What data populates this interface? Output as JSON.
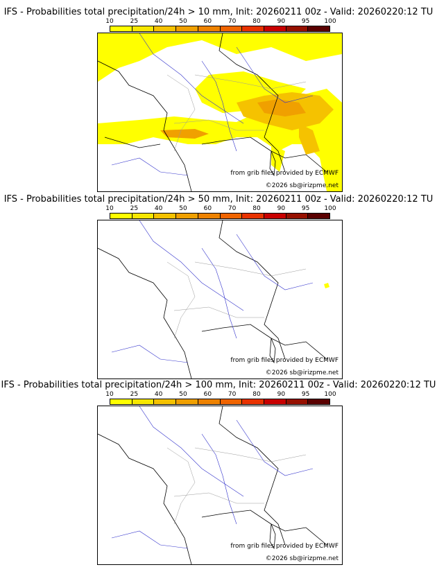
{
  "legend": {
    "labels": [
      "10",
      "25",
      "40",
      "50",
      "60",
      "70",
      "80",
      "90",
      "95",
      "100"
    ],
    "colors": [
      "#ffff00",
      "#f7e700",
      "#f5c200",
      "#f0a000",
      "#ee8200",
      "#f06400",
      "#e83200",
      "#c80000",
      "#961000",
      "#5a0000"
    ]
  },
  "credits": {
    "source": "from grib files provided by ECMWF",
    "copyright": "©2026 sb@irizpme.net"
  },
  "panels": [
    {
      "title": "IFS - Probabilities total precipitation/24h > 10 mm, Init: 20260211 00z - Valid: 20260220:12 TU",
      "threshold": "10 mm"
    },
    {
      "title": "IFS - Probabilities total precipitation/24h > 50 mm, Init: 20260211 00z - Valid: 20260220:12 TU",
      "threshold": "50 mm"
    },
    {
      "title": "IFS - Probabilities total precipitation/24h > 100 mm, Init: 20260211 00z - Valid: 20260220:12 TU",
      "threshold": "100 mm"
    }
  ]
}
